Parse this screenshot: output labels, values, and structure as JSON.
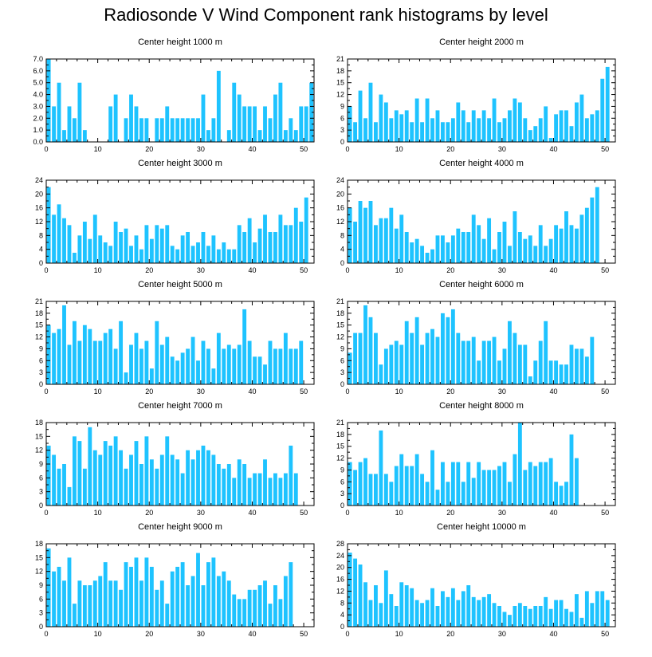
{
  "title": "Radiosonde V Wind Component rank histograms by level",
  "colors": {
    "bar": "#1ec3ff",
    "axis": "#000000"
  },
  "chart_data": [
    {
      "type": "bar",
      "title": "Center height 1000 m",
      "ylim": [
        0,
        7
      ],
      "yticks": [
        "0.0",
        "1.0",
        "2.0",
        "3.0",
        "4.0",
        "5.0",
        "6.0",
        "7.0"
      ],
      "ytick_values": [
        0,
        1,
        2,
        3,
        4,
        5,
        6,
        7
      ],
      "xlim": [
        0,
        52
      ],
      "xticks": [
        0,
        10,
        20,
        30,
        40,
        50
      ],
      "values": [
        7,
        3,
        5,
        1,
        3,
        2,
        5,
        1,
        0,
        0,
        0,
        0,
        3,
        4,
        0,
        2,
        4,
        3,
        2,
        2,
        0,
        2,
        2,
        3,
        2,
        2,
        2,
        2,
        2,
        2,
        4,
        1,
        2,
        6,
        0,
        1,
        5,
        4,
        3,
        3,
        3,
        1,
        3,
        2,
        4,
        5,
        1,
        2,
        1,
        3,
        3,
        5
      ]
    },
    {
      "type": "bar",
      "title": "Center height 2000 m",
      "ylim": [
        0,
        21
      ],
      "yticks": [
        "0",
        "3",
        "6",
        "9",
        "12",
        "15",
        "18",
        "21"
      ],
      "ytick_values": [
        0,
        3,
        6,
        9,
        12,
        15,
        18,
        21
      ],
      "xlim": [
        0,
        52
      ],
      "xticks": [
        0,
        10,
        20,
        30,
        40,
        50
      ],
      "values": [
        9,
        5,
        13,
        6,
        15,
        5,
        12,
        10,
        6,
        8,
        7,
        8,
        5,
        11,
        5,
        11,
        6,
        8,
        5,
        5,
        6,
        10,
        8,
        5,
        8,
        6,
        8,
        6,
        11,
        5,
        6,
        8,
        11,
        10,
        6,
        3,
        4,
        6,
        9,
        1,
        7,
        8,
        8,
        4,
        10,
        12,
        6,
        7,
        8,
        16,
        19
      ]
    },
    {
      "type": "bar",
      "title": "Center height 3000 m",
      "ylim": [
        0,
        24
      ],
      "yticks": [
        "0",
        "4",
        "8",
        "12",
        "16",
        "20",
        "24"
      ],
      "ytick_values": [
        0,
        4,
        8,
        12,
        16,
        20,
        24
      ],
      "xlim": [
        0,
        52
      ],
      "xticks": [
        0,
        10,
        20,
        30,
        40,
        50
      ],
      "values": [
        22,
        14,
        17,
        13,
        11,
        3,
        8,
        12,
        7,
        14,
        8,
        6,
        5,
        12,
        9,
        10,
        5,
        8,
        4,
        11,
        7,
        11,
        10,
        11,
        5,
        4,
        8,
        9,
        5,
        6,
        9,
        5,
        8,
        4,
        6,
        4,
        4,
        11,
        9,
        13,
        6,
        10,
        14,
        9,
        9,
        14,
        11,
        11,
        16,
        12,
        19
      ]
    },
    {
      "type": "bar",
      "title": "Center height 4000 m",
      "ylim": [
        0,
        24
      ],
      "yticks": [
        "0",
        "4",
        "8",
        "12",
        "16",
        "20",
        "24"
      ],
      "ytick_values": [
        0,
        4,
        8,
        12,
        16,
        20,
        24
      ],
      "xlim": [
        0,
        52
      ],
      "xticks": [
        0,
        10,
        20,
        30,
        40,
        50
      ],
      "values": [
        16,
        12,
        18,
        16,
        18,
        11,
        13,
        13,
        16,
        10,
        14,
        9,
        6,
        7,
        5,
        3,
        4,
        8,
        8,
        6,
        8,
        10,
        9,
        9,
        14,
        11,
        7,
        13,
        4,
        9,
        12,
        5,
        15,
        9,
        7,
        8,
        5,
        11,
        5,
        7,
        11,
        10,
        15,
        11,
        10,
        14,
        16,
        19,
        22
      ]
    },
    {
      "type": "bar",
      "title": "Center height 5000 m",
      "ylim": [
        0,
        21
      ],
      "yticks": [
        "0",
        "3",
        "6",
        "9",
        "12",
        "15",
        "18",
        "21"
      ],
      "ytick_values": [
        0,
        3,
        6,
        9,
        12,
        15,
        18,
        21
      ],
      "xlim": [
        0,
        52
      ],
      "xticks": [
        0,
        10,
        20,
        30,
        40,
        50
      ],
      "values": [
        15,
        13,
        14,
        20,
        10,
        16,
        11,
        15,
        14,
        11,
        11,
        13,
        14,
        9,
        16,
        3,
        10,
        13,
        9,
        11,
        4,
        16,
        10,
        12,
        7,
        6,
        8,
        9,
        12,
        6,
        11,
        9,
        4,
        13,
        9,
        10,
        9,
        10,
        19,
        11,
        7,
        7,
        5,
        11,
        9,
        9,
        13,
        9,
        9,
        11
      ]
    },
    {
      "type": "bar",
      "title": "Center height 6000 m",
      "ylim": [
        0,
        21
      ],
      "yticks": [
        "0",
        "3",
        "6",
        "9",
        "12",
        "15",
        "18",
        "21"
      ],
      "ytick_values": [
        0,
        3,
        6,
        9,
        12,
        15,
        18,
        21
      ],
      "xlim": [
        0,
        52
      ],
      "xticks": [
        0,
        10,
        20,
        30,
        40,
        50
      ],
      "values": [
        8,
        13,
        13,
        20,
        17,
        13,
        5,
        9,
        10,
        11,
        10,
        16,
        13,
        17,
        10,
        13,
        14,
        12,
        18,
        17,
        19,
        13,
        11,
        11,
        12,
        6,
        11,
        11,
        12,
        6,
        9,
        16,
        13,
        10,
        10,
        2,
        6,
        11,
        16,
        6,
        6,
        5,
        5,
        10,
        9,
        9,
        7,
        12
      ]
    },
    {
      "type": "bar",
      "title": "Center height 7000 m",
      "ylim": [
        0,
        18
      ],
      "yticks": [
        "0",
        "3",
        "6",
        "9",
        "12",
        "15",
        "18"
      ],
      "ytick_values": [
        0,
        3,
        6,
        9,
        12,
        15,
        18
      ],
      "xlim": [
        0,
        52
      ],
      "xticks": [
        0,
        10,
        20,
        30,
        40,
        50
      ],
      "values": [
        13,
        11,
        8,
        9,
        4,
        15,
        14,
        8,
        17,
        12,
        11,
        14,
        13,
        15,
        12,
        8,
        11,
        14,
        9,
        15,
        10,
        8,
        11,
        15,
        11,
        10,
        7,
        12,
        10,
        12,
        13,
        12,
        11,
        9,
        8,
        9,
        6,
        10,
        9,
        6,
        7,
        7,
        10,
        6,
        7,
        6,
        7,
        13,
        7
      ]
    },
    {
      "type": "bar",
      "title": "Center height 8000 m",
      "ylim": [
        0,
        21
      ],
      "yticks": [
        "0",
        "3",
        "6",
        "9",
        "12",
        "15",
        "18",
        "21"
      ],
      "ytick_values": [
        0,
        3,
        6,
        9,
        12,
        15,
        18,
        21
      ],
      "xlim": [
        0,
        52
      ],
      "xticks": [
        0,
        10,
        20,
        30,
        40,
        50
      ],
      "values": [
        11,
        9,
        11,
        12,
        8,
        8,
        19,
        8,
        6,
        10,
        13,
        10,
        10,
        13,
        8,
        6,
        14,
        4,
        11,
        6,
        11,
        11,
        6,
        11,
        7,
        11,
        9,
        9,
        9,
        10,
        11,
        6,
        13,
        21,
        9,
        11,
        10,
        11,
        11,
        12,
        6,
        5,
        6,
        18,
        12
      ]
    },
    {
      "type": "bar",
      "title": "Center height 9000 m",
      "ylim": [
        0,
        18
      ],
      "yticks": [
        "0",
        "3",
        "6",
        "9",
        "12",
        "15",
        "18"
      ],
      "ytick_values": [
        0,
        3,
        6,
        9,
        12,
        15,
        18
      ],
      "xlim": [
        0,
        52
      ],
      "xticks": [
        0,
        10,
        20,
        30,
        40,
        50
      ],
      "values": [
        17,
        12,
        13,
        10,
        15,
        5,
        10,
        9,
        9,
        10,
        11,
        14,
        10,
        10,
        8,
        14,
        13,
        15,
        10,
        15,
        13,
        8,
        10,
        5,
        12,
        13,
        14,
        9,
        11,
        16,
        9,
        14,
        15,
        11,
        12,
        10,
        7,
        6,
        6,
        8,
        8,
        9,
        10,
        5,
        9,
        6,
        11,
        14
      ]
    },
    {
      "type": "bar",
      "title": "Center height 10000 m",
      "ylim": [
        0,
        28
      ],
      "yticks": [
        "0",
        "4",
        "8",
        "12",
        "16",
        "20",
        "24",
        "28"
      ],
      "ytick_values": [
        0,
        4,
        8,
        12,
        16,
        20,
        24,
        28
      ],
      "xlim": [
        0,
        52
      ],
      "xticks": [
        0,
        10,
        20,
        30,
        40,
        50
      ],
      "values": [
        25,
        23,
        21,
        15,
        9,
        14,
        8,
        19,
        11,
        7,
        15,
        14,
        13,
        9,
        8,
        9,
        13,
        7,
        12,
        10,
        13,
        9,
        12,
        14,
        10,
        9,
        10,
        11,
        8,
        7,
        5,
        4,
        7,
        8,
        7,
        6,
        7,
        7,
        10,
        6,
        9,
        9,
        6,
        5,
        11,
        3,
        12,
        8,
        12,
        12,
        9
      ]
    }
  ]
}
